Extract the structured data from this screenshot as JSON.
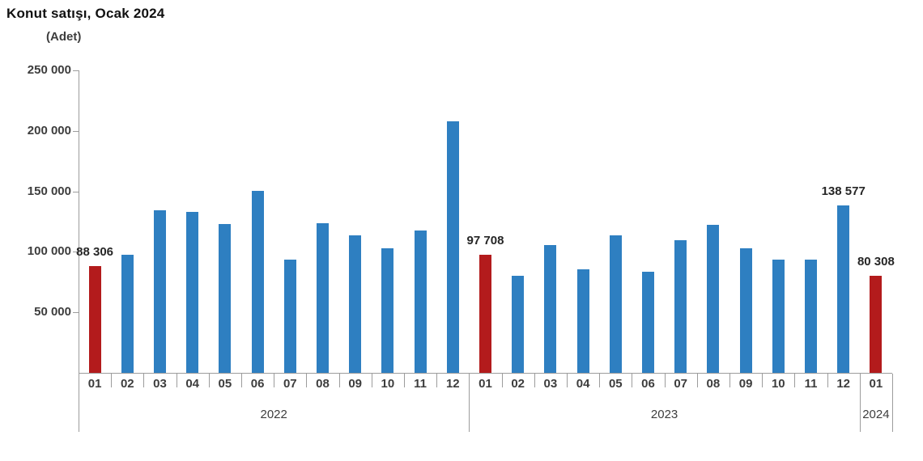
{
  "title": "Konut satışı, Ocak 2024",
  "subtitle": "(Adet)",
  "chart_data": {
    "type": "bar",
    "title": "Konut satışı, Ocak 2024",
    "ylabel": "(Adet)",
    "xlabel": "",
    "ylim": [
      0,
      250000
    ],
    "grid": false,
    "legend": "none",
    "yticks": [
      {
        "value": 250000,
        "label": "250 000"
      },
      {
        "value": 200000,
        "label": "200 000"
      },
      {
        "value": 150000,
        "label": "150 000"
      },
      {
        "value": 100000,
        "label": "100 000"
      },
      {
        "value": 50000,
        "label": "50 000"
      }
    ],
    "colors": {
      "bar": "#2E7FC1",
      "highlight": "#B31B1C"
    },
    "highlight_months": [
      "01"
    ],
    "groups": [
      {
        "year": "2022",
        "months": [
          "01",
          "02",
          "03",
          "04",
          "05",
          "06",
          "07",
          "08",
          "09",
          "10",
          "11",
          "12"
        ],
        "values": [
          88306,
          97587,
          134170,
          133058,
          122768,
          150509,
          93902,
          123491,
          113402,
          102660,
          117806,
          207963
        ]
      },
      {
        "year": "2023",
        "months": [
          "01",
          "02",
          "03",
          "04",
          "05",
          "06",
          "07",
          "08",
          "09",
          "10",
          "11",
          "12"
        ],
        "values": [
          97708,
          80031,
          105476,
          85652,
          113903,
          83636,
          109548,
          122091,
          102656,
          93761,
          93514,
          138577
        ]
      },
      {
        "year": "2024",
        "months": [
          "01"
        ],
        "values": [
          80308
        ]
      }
    ],
    "annotations": [
      {
        "year": "2022",
        "month": "01",
        "label": "88 306"
      },
      {
        "year": "2023",
        "month": "01",
        "label": "97 708"
      },
      {
        "year": "2023",
        "month": "12",
        "label": "138 577"
      },
      {
        "year": "2024",
        "month": "01",
        "label": "80 308"
      }
    ]
  }
}
